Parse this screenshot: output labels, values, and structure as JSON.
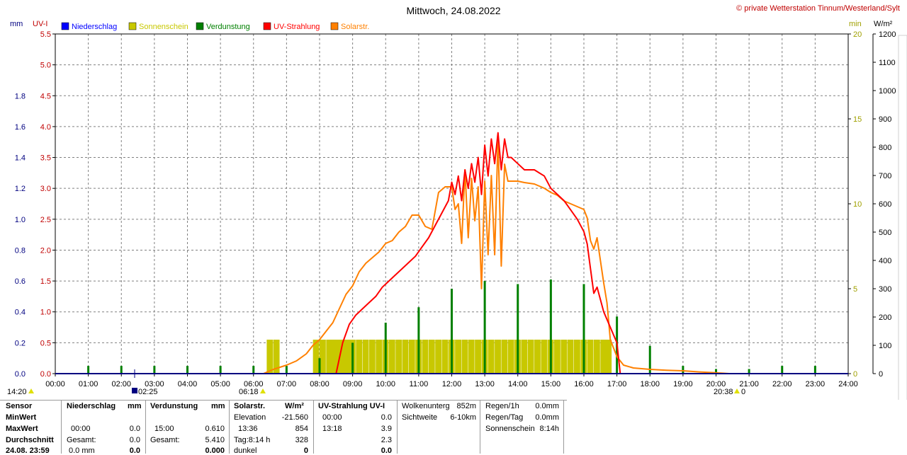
{
  "header": {
    "title": "Mittwoch, 24.08.2022",
    "credit": "© private Wetterstation Tinnum/Westerland/Sylt"
  },
  "axis_units": {
    "mm": "mm",
    "uvi": "UV-I",
    "min": "min",
    "wm2": "W/m²"
  },
  "legend": [
    {
      "label": "Niederschlag",
      "color": "#0000ff",
      "text_color": "#0000ff"
    },
    {
      "label": "Sonnenschein",
      "color": "#c8c800",
      "text_color": "#c8c800"
    },
    {
      "label": "Verdunstung",
      "color": "#008000",
      "text_color": "#008000"
    },
    {
      "label": "UV-Strahlung",
      "color": "#ff0000",
      "text_color": "#ff0000"
    },
    {
      "label": "Solarstr.",
      "color": "#ff8000",
      "text_color": "#ff8000"
    }
  ],
  "markers": {
    "sunrise_label": "06:18",
    "sunset_label": "20:38",
    "sunset_suffix": "0",
    "start_label": "14:20",
    "moon_label": "02:25"
  },
  "chart_data": {
    "type": "line",
    "title": "Mittwoch, 24.08.2022",
    "x_ticks": [
      "00:00",
      "01:00",
      "02:00",
      "03:00",
      "04:00",
      "05:00",
      "06:00",
      "07:00",
      "08:00",
      "09:00",
      "10:00",
      "11:00",
      "12:00",
      "13:00",
      "14:00",
      "15:00",
      "16:00",
      "17:00",
      "18:00",
      "19:00",
      "20:00",
      "21:00",
      "22:00",
      "23:00",
      "24:00"
    ],
    "xlim": [
      0,
      24
    ],
    "grid": true,
    "axes": {
      "mm": {
        "ticks": [
          "0.0",
          "0.2",
          "0.4",
          "0.6",
          "0.8",
          "1.0",
          "1.2",
          "1.4",
          "1.6",
          "1.8"
        ],
        "ylim": [
          0,
          2.2
        ],
        "color": "#000080"
      },
      "uvi": {
        "ticks": [
          "0.0",
          "0.5",
          "1.0",
          "1.5",
          "2.0",
          "2.5",
          "3.0",
          "3.5",
          "4.0",
          "4.5",
          "5.0",
          "5.5"
        ],
        "ylim": [
          0,
          5.5
        ],
        "color": "#c00000"
      },
      "min": {
        "ticks": [
          "0",
          "5",
          "10",
          "15",
          "20"
        ],
        "ylim": [
          0,
          20
        ],
        "color": "#a0a000"
      },
      "wm2": {
        "ticks": [
          "0",
          "100",
          "200",
          "300",
          "400",
          "500",
          "600",
          "700",
          "800",
          "900",
          "1000",
          "1100",
          "1200"
        ],
        "ylim": [
          0,
          1200
        ],
        "color": "#000000"
      }
    },
    "series": [
      {
        "name": "Solarstr.",
        "unit": "W/m²",
        "color": "#ff8000",
        "x": [
          6.3,
          6.6,
          7.0,
          7.3,
          7.6,
          7.8,
          8.0,
          8.2,
          8.4,
          8.6,
          8.8,
          9.0,
          9.2,
          9.4,
          9.6,
          9.8,
          10.0,
          10.2,
          10.4,
          10.6,
          10.8,
          11.0,
          11.2,
          11.4,
          11.6,
          11.8,
          12.0,
          12.1,
          12.2,
          12.3,
          12.4,
          12.5,
          12.6,
          12.7,
          12.8,
          12.9,
          13.0,
          13.1,
          13.2,
          13.3,
          13.4,
          13.5,
          13.6,
          13.7,
          13.8,
          14.0,
          14.2,
          14.5,
          14.8,
          15.0,
          15.2,
          15.4,
          15.6,
          15.8,
          16.0,
          16.1,
          16.2,
          16.3,
          16.4,
          16.5,
          16.6,
          16.7,
          16.8,
          17.0,
          17.2,
          17.5,
          18.0,
          18.5,
          19.0,
          19.5,
          20.0,
          20.4,
          20.6
        ],
        "y": [
          0,
          15,
          30,
          45,
          70,
          100,
          120,
          150,
          180,
          230,
          280,
          310,
          360,
          390,
          410,
          430,
          460,
          470,
          500,
          520,
          560,
          560,
          520,
          510,
          640,
          660,
          660,
          580,
          600,
          460,
          720,
          480,
          690,
          540,
          660,
          300,
          680,
          420,
          700,
          420,
          830,
          380,
          740,
          680,
          680,
          680,
          675,
          670,
          655,
          640,
          630,
          610,
          600,
          590,
          580,
          550,
          470,
          440,
          480,
          400,
          320,
          250,
          120,
          60,
          30,
          20,
          15,
          12,
          10,
          6,
          3,
          0,
          0
        ]
      },
      {
        "name": "UV-Strahlung",
        "unit": "UV-I",
        "color": "#ff0000",
        "x": [
          8.5,
          8.7,
          8.9,
          9.1,
          9.3,
          9.5,
          9.7,
          9.9,
          10.1,
          10.3,
          10.5,
          10.7,
          10.9,
          11.1,
          11.3,
          11.5,
          11.7,
          11.9,
          12.0,
          12.1,
          12.2,
          12.3,
          12.4,
          12.5,
          12.6,
          12.7,
          12.8,
          12.9,
          13.0,
          13.1,
          13.2,
          13.3,
          13.4,
          13.5,
          13.6,
          13.7,
          13.8,
          14.0,
          14.2,
          14.5,
          14.8,
          15.0,
          15.2,
          15.4,
          15.6,
          15.8,
          16.0,
          16.1,
          16.2,
          16.3,
          16.4,
          16.5,
          16.6,
          16.8,
          17.0,
          17.1
        ],
        "y": [
          0,
          0.5,
          0.8,
          0.95,
          1.05,
          1.15,
          1.25,
          1.4,
          1.5,
          1.6,
          1.7,
          1.8,
          1.9,
          2.05,
          2.2,
          2.4,
          2.6,
          2.8,
          3.1,
          2.9,
          3.2,
          2.8,
          3.3,
          3.0,
          3.4,
          3.1,
          3.5,
          2.9,
          3.7,
          3.2,
          3.8,
          3.4,
          3.9,
          3.3,
          3.8,
          3.5,
          3.5,
          3.4,
          3.3,
          3.3,
          3.2,
          3.0,
          2.9,
          2.8,
          2.65,
          2.5,
          2.3,
          2.1,
          1.7,
          1.3,
          1.4,
          1.2,
          1.0,
          0.75,
          0.5,
          0
        ]
      }
    ],
    "bar_series": [
      {
        "name": "Sonnenschein",
        "unit": "min",
        "color": "#c8c800",
        "x": [
          6.5,
          6.7,
          7.9,
          8.1,
          8.3,
          8.45,
          8.55,
          8.7,
          8.85,
          9.0,
          9.2,
          9.4,
          9.6,
          9.8,
          10.0,
          10.2,
          10.4,
          10.6,
          10.8,
          11.0,
          11.2,
          11.4,
          11.6,
          11.8,
          12.0,
          12.2,
          12.4,
          12.6,
          12.8,
          13.0,
          13.2,
          13.4,
          13.6,
          13.8,
          14.0,
          14.2,
          14.4,
          14.6,
          14.8,
          15.0,
          15.2,
          15.4,
          15.6,
          15.8,
          16.0,
          16.2,
          16.4,
          16.6,
          16.75
        ],
        "y": [
          2,
          2,
          2,
          2,
          2,
          2,
          2,
          2,
          2,
          2,
          2,
          2,
          2,
          2,
          2,
          2,
          2,
          2,
          2,
          2,
          2,
          2,
          2,
          2,
          2,
          2,
          2,
          2,
          2,
          2,
          2,
          2,
          2,
          2,
          2,
          2,
          2,
          2,
          2,
          2,
          2,
          2,
          2,
          2,
          2,
          2,
          2,
          2,
          2
        ]
      },
      {
        "name": "Verdunstung",
        "unit": "mm",
        "color": "#008000",
        "x": [
          1,
          2,
          3,
          4,
          5,
          6,
          7,
          8,
          9,
          10,
          11,
          12,
          13,
          14,
          15,
          16,
          17,
          18,
          19,
          20,
          21,
          22,
          23
        ],
        "y": [
          0.05,
          0.05,
          0.05,
          0.05,
          0.05,
          0.05,
          0.05,
          0.1,
          0.2,
          0.33,
          0.43,
          0.55,
          0.6,
          0.58,
          0.61,
          0.58,
          0.37,
          0.18,
          0.05,
          0.03,
          0.03,
          0.05,
          0.05
        ]
      }
    ]
  },
  "stats": {
    "row_labels": [
      "Sensor",
      "MinWert",
      "MaxWert",
      "Durchschnitt",
      "24.08. 23:59"
    ],
    "niederschlag": {
      "header": "Niederschlag",
      "unit": "mm",
      "min_time": "",
      "min_val": "",
      "max_time": "00:00",
      "max_val": "0.0",
      "avg_label": "Gesamt:",
      "avg_val": "0.0",
      "now_val": "0.0 mm",
      "now_big": "0.0"
    },
    "verdunstung": {
      "header": "Verdunstung",
      "unit": "mm",
      "max_time": "15:00",
      "max_val": "0.610",
      "avg_label": "Gesamt:",
      "avg_val": "5.410",
      "now_big": "0.000"
    },
    "solar": {
      "header": "Solarstr.",
      "unit": "W/m²",
      "min_label": "Elevation",
      "min_val": "-21.560",
      "max_time": "13:36",
      "max_val": "854",
      "avg_label": "Tag:8:14 h",
      "avg_val": "328",
      "now_label": "dunkel",
      "now_big": "0"
    },
    "uv": {
      "header": "UV-Strahlung UV-I",
      "min_time": "00:00",
      "min_val": "0.0",
      "max_time": "13:18",
      "max_val": "3.9",
      "avg_val": "2.3",
      "now_big": "0.0"
    },
    "wolken": {
      "label": "Wolkenunterg",
      "value": "852m"
    },
    "sicht": {
      "label": "Sichtweite",
      "value": "6-10km"
    },
    "regen1h": {
      "label": "Regen/1h",
      "value": "0.0mm"
    },
    "regentag": {
      "label": "Regen/Tag",
      "value": "0.0mm"
    },
    "sonne": {
      "label": "Sonnenschein",
      "value": "8:14h"
    }
  }
}
